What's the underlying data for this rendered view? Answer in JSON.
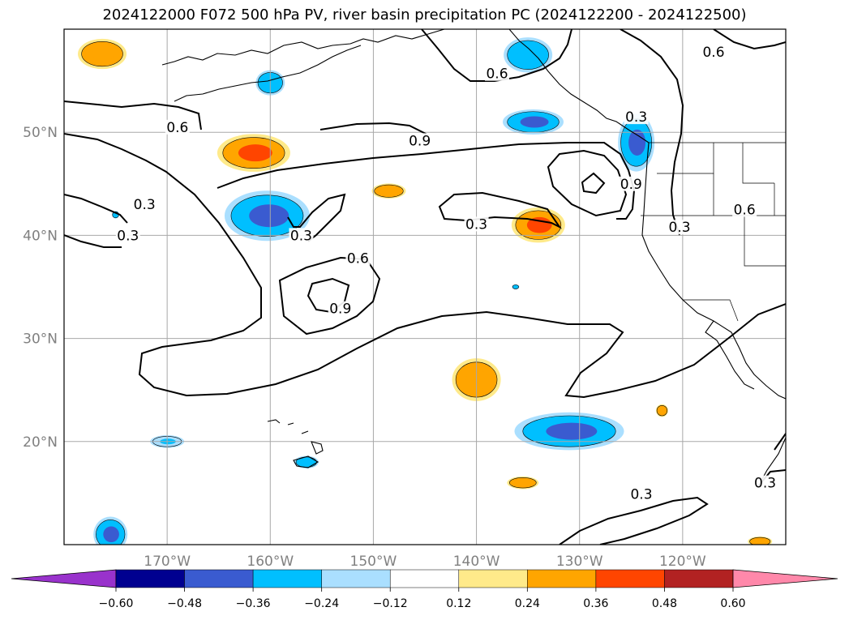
{
  "title": "2024122000 F072 500 hPa PV, river basin precipitation PC (2024122200 - 2024122500)",
  "map": {
    "lon_range": [
      -180,
      -110
    ],
    "lat_range": [
      10,
      60
    ],
    "lon_ticks": [
      {
        "value": -170,
        "label": "170°W"
      },
      {
        "value": -160,
        "label": "160°W"
      },
      {
        "value": -150,
        "label": "150°W"
      },
      {
        "value": -140,
        "label": "140°W"
      },
      {
        "value": -130,
        "label": "130°W"
      },
      {
        "value": -120,
        "label": "120°W"
      }
    ],
    "lat_ticks": [
      {
        "value": 50,
        "label": "50°N"
      },
      {
        "value": 40,
        "label": "40°N"
      },
      {
        "value": 30,
        "label": "30°N"
      },
      {
        "value": 20,
        "label": "20°N"
      }
    ],
    "grid": true
  },
  "contour_labels": [
    {
      "text": "0.6",
      "lon": -169.0,
      "lat": 50.5
    },
    {
      "text": "0.3",
      "lon": -172.2,
      "lat": 43.0
    },
    {
      "text": "0.3",
      "lon": -173.8,
      "lat": 40.0
    },
    {
      "text": "0.3",
      "lon": -157.0,
      "lat": 40.0
    },
    {
      "text": "0.9",
      "lon": -145.5,
      "lat": 49.2
    },
    {
      "text": "0.6",
      "lon": -151.5,
      "lat": 37.8
    },
    {
      "text": "0.9",
      "lon": -153.2,
      "lat": 32.9
    },
    {
      "text": "0.6",
      "lon": -138.0,
      "lat": 55.7
    },
    {
      "text": "0.3",
      "lon": -140.0,
      "lat": 41.1
    },
    {
      "text": "0.9",
      "lon": -125.0,
      "lat": 45.0
    },
    {
      "text": "0.3",
      "lon": -124.5,
      "lat": 51.5
    },
    {
      "text": "0.6",
      "lon": -117.0,
      "lat": 57.8
    },
    {
      "text": "0.3",
      "lon": -120.3,
      "lat": 40.8
    },
    {
      "text": "0.6",
      "lon": -114.0,
      "lat": 42.5
    },
    {
      "text": "0.3",
      "lon": -124.0,
      "lat": 14.9
    },
    {
      "text": "0.3",
      "lon": -112.0,
      "lat": 16.0
    }
  ],
  "precip_blobs": [
    {
      "lon": -176.3,
      "lat": 57.6,
      "rx": 2.0,
      "ry": 1.2,
      "level": "0.24"
    },
    {
      "lon": -161.6,
      "lat": 48.0,
      "rx": 3.0,
      "ry": 1.5,
      "level": "0.36"
    },
    {
      "lon": -160.3,
      "lat": 41.9,
      "rx": 3.5,
      "ry": 2.0,
      "level": "-0.48"
    },
    {
      "lon": -160.0,
      "lat": 54.8,
      "rx": 1.2,
      "ry": 1.0,
      "level": "-0.36"
    },
    {
      "lon": -148.5,
      "lat": 44.3,
      "rx": 1.4,
      "ry": 0.6,
      "level": "0.24"
    },
    {
      "lon": -134.0,
      "lat": 41.0,
      "rx": 2.2,
      "ry": 1.4,
      "level": "0.36"
    },
    {
      "lon": -134.5,
      "lat": 51.0,
      "rx": 2.5,
      "ry": 1.0,
      "level": "-0.48"
    },
    {
      "lon": -135.0,
      "lat": 57.5,
      "rx": 2.0,
      "ry": 1.4,
      "level": "-0.36"
    },
    {
      "lon": -124.5,
      "lat": 49.0,
      "rx": 1.5,
      "ry": 2.3,
      "level": "-0.48"
    },
    {
      "lon": -140.0,
      "lat": 26.0,
      "rx": 2.0,
      "ry": 1.7,
      "level": "0.24"
    },
    {
      "lon": -131.0,
      "lat": 21.0,
      "rx": 4.5,
      "ry": 1.5,
      "level": "-0.48"
    },
    {
      "lon": -135.5,
      "lat": 16.0,
      "rx": 1.3,
      "ry": 0.5,
      "level": "0.24"
    },
    {
      "lon": -170.0,
      "lat": 20.0,
      "rx": 1.4,
      "ry": 0.5,
      "level": "-0.24"
    },
    {
      "lon": -156.5,
      "lat": 18.0,
      "rx": 1.0,
      "ry": 0.5,
      "level": "-0.36"
    },
    {
      "lon": -175.5,
      "lat": 11.0,
      "rx": 1.4,
      "ry": 1.4,
      "level": "-0.48"
    },
    {
      "lon": -122.0,
      "lat": 23.0,
      "rx": 0.5,
      "ry": 0.5,
      "level": "0.24"
    },
    {
      "lon": -175.0,
      "lat": 42.0,
      "rx": 0.3,
      "ry": 0.3,
      "level": "-0.36"
    },
    {
      "lon": -136.2,
      "lat": 35.0,
      "rx": 0.3,
      "ry": 0.2,
      "level": "-0.36"
    },
    {
      "lon": -112.5,
      "lat": 10.3,
      "rx": 1.0,
      "ry": 0.4,
      "level": "0.24"
    }
  ],
  "colorbar": {
    "ticks": [
      "−0.60",
      "−0.48",
      "−0.36",
      "−0.24",
      "−0.12",
      "0.12",
      "0.24",
      "0.36",
      "0.48",
      "0.60"
    ],
    "extend_low_color": "#9932cc",
    "extend_high_color": "#ff88aa",
    "colors": [
      "#000090",
      "#3a5bd0",
      "#00bfff",
      "#aadfff",
      "#ffffff",
      "#ffea8a",
      "#ffa500",
      "#ff4500",
      "#b22222"
    ]
  },
  "precip_colors": {
    "-0.48": {
      "outer": "#aadfff",
      "mid": "#00bfff",
      "inner": "#3a5bd0"
    },
    "-0.36": {
      "outer": "#aadfff",
      "mid": "#00bfff",
      "inner": "#00bfff"
    },
    "-0.24": {
      "outer": "#aadfff",
      "mid": "#aadfff",
      "inner": "#00bfff"
    },
    "0.24": {
      "outer": "#ffea8a",
      "mid": "#ffa500",
      "inner": "#ffa500"
    },
    "0.36": {
      "outer": "#ffea8a",
      "mid": "#ffa500",
      "inner": "#ff4500"
    }
  }
}
